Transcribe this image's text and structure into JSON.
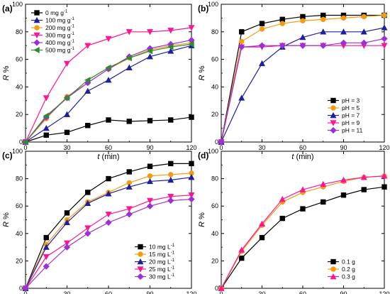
{
  "chart_data": [
    {
      "type": "line",
      "panel_label": "(a)",
      "xlabel": "t",
      "xlabel_unit": "(min)",
      "ylabel": "R",
      "ylabel_unit": "%",
      "xlim": [
        0,
        120
      ],
      "ylim": [
        0,
        100
      ],
      "xticks": [
        0,
        30,
        60,
        90,
        120
      ],
      "yticks": [
        0,
        20,
        40,
        60,
        80,
        100
      ],
      "legend_position": "top-left",
      "x": [
        0,
        15,
        30,
        45,
        60,
        75,
        90,
        105,
        120
      ],
      "series": [
        {
          "name": "0 mg g",
          "name_sup": "-1",
          "color": "#000000",
          "marker": "square",
          "values": [
            0,
            5,
            7,
            12,
            16,
            15,
            15.5,
            16,
            18
          ]
        },
        {
          "name": "100 mg g",
          "name_sup": "-1",
          "color": "#1f1f9c",
          "marker": "triangle-up",
          "values": [
            0,
            10,
            20,
            37,
            45,
            54,
            62,
            66,
            70
          ]
        },
        {
          "name": "200 mg g",
          "name_sup": "-1",
          "color": "#f39c12",
          "marker": "circle",
          "values": [
            0,
            17,
            33,
            43,
            53,
            61,
            67,
            70,
            72
          ]
        },
        {
          "name": "300 mg g",
          "name_sup": "-1",
          "color": "#ff1493",
          "marker": "triangle-down",
          "values": [
            0,
            32,
            57,
            70,
            75,
            80,
            80,
            81,
            83
          ]
        },
        {
          "name": "400 mg g",
          "name_sup": "-1",
          "color": "#9b30d9",
          "marker": "diamond",
          "values": [
            0,
            18,
            32,
            43,
            53,
            62,
            68,
            71,
            74
          ]
        },
        {
          "name": "500 mg g",
          "name_sup": "-1",
          "color": "#2e8b2e",
          "marker": "triangle-left",
          "values": [
            0,
            19,
            32,
            45,
            54,
            61,
            66,
            69,
            71
          ]
        }
      ]
    },
    {
      "type": "line",
      "panel_label": "(b)",
      "xlabel": "t",
      "xlabel_unit": "(min)",
      "ylabel": "R",
      "ylabel_unit": "%",
      "xlim": [
        0,
        120
      ],
      "ylim": [
        0,
        100
      ],
      "xticks": [
        0,
        30,
        60,
        90,
        120
      ],
      "yticks": [
        0,
        20,
        40,
        60,
        80,
        100
      ],
      "legend_position": "bottom-right",
      "x": [
        0,
        15,
        30,
        45,
        60,
        75,
        90,
        105,
        120
      ],
      "series": [
        {
          "name": "pH = 3",
          "name_sup": "",
          "color": "#000000",
          "marker": "square",
          "values": [
            0,
            80,
            86,
            89,
            91,
            92,
            92,
            92,
            92
          ]
        },
        {
          "name": "pH = 5",
          "name_sup": "",
          "color": "#f39c12",
          "marker": "circle",
          "values": [
            0,
            73,
            82,
            86,
            88,
            89,
            90,
            91,
            92
          ]
        },
        {
          "name": "pH = 7",
          "name_sup": "",
          "color": "#1f1f9c",
          "marker": "triangle-up",
          "values": [
            0,
            32,
            57,
            69,
            76,
            80,
            80,
            80,
            83
          ]
        },
        {
          "name": "pH = 9",
          "name_sup": "",
          "color": "#ff1493",
          "marker": "triangle-down",
          "values": [
            0,
            69,
            69,
            70,
            70,
            70,
            70,
            70,
            70
          ]
        },
        {
          "name": "pH = 11",
          "name_sup": "",
          "color": "#9b30d9",
          "marker": "diamond",
          "values": [
            0,
            69,
            70,
            70,
            70,
            70,
            72,
            72,
            75
          ]
        }
      ]
    },
    {
      "type": "line",
      "panel_label": "(c)",
      "xlabel": "t",
      "xlabel_unit": "(min)",
      "ylabel": "R",
      "ylabel_unit": "%",
      "xlim": [
        0,
        120
      ],
      "ylim": [
        0,
        100
      ],
      "xticks": [
        0,
        30,
        60,
        90,
        120
      ],
      "yticks": [
        0,
        20,
        40,
        60,
        80,
        100
      ],
      "legend_position": "bottom-right",
      "x": [
        0,
        15,
        30,
        45,
        60,
        75,
        90,
        105,
        120
      ],
      "series": [
        {
          "name": "10 mg L",
          "name_sup": "-1",
          "color": "#000000",
          "marker": "square",
          "values": [
            0,
            37,
            55,
            70,
            80,
            85,
            89,
            91,
            91
          ]
        },
        {
          "name": "15 mg L",
          "name_sup": "-1",
          "color": "#f39c12",
          "marker": "circle",
          "values": [
            0,
            32,
            50,
            63,
            70,
            77,
            82,
            83,
            84
          ]
        },
        {
          "name": "20 mg L",
          "name_sup": "-1",
          "color": "#1f1f9c",
          "marker": "triangle-up",
          "values": [
            0,
            30,
            48,
            62,
            69,
            74,
            78,
            79,
            81
          ]
        },
        {
          "name": "25 mg L",
          "name_sup": "-1",
          "color": "#ff1493",
          "marker": "triangle-down",
          "values": [
            0,
            23,
            33,
            44,
            54,
            58,
            64,
            67,
            68
          ]
        },
        {
          "name": "30 mg L",
          "name_sup": "-1",
          "color": "#9b30d9",
          "marker": "diamond",
          "values": [
            0,
            16,
            30,
            40,
            48,
            54,
            60,
            64,
            65
          ]
        }
      ]
    },
    {
      "type": "line",
      "panel_label": "(d)",
      "xlabel": "t",
      "xlabel_unit": "(min)",
      "ylabel": "R",
      "ylabel_unit": "%",
      "xlim": [
        0,
        120
      ],
      "ylim": [
        0,
        100
      ],
      "xticks": [
        0,
        30,
        60,
        90,
        120
      ],
      "yticks": [
        0,
        20,
        40,
        60,
        80,
        100
      ],
      "legend_position": "bottom-right",
      "x": [
        0,
        15,
        30,
        45,
        60,
        75,
        90,
        105,
        120
      ],
      "series": [
        {
          "name": "0.1 g",
          "name_sup": "",
          "color": "#000000",
          "marker": "square",
          "values": [
            0,
            22,
            37,
            51,
            58,
            63,
            68,
            72,
            74
          ]
        },
        {
          "name": "0.2 g",
          "name_sup": "",
          "color": "#f39c12",
          "marker": "circle",
          "values": [
            0,
            27,
            46,
            63,
            70,
            74,
            78,
            81,
            82
          ]
        },
        {
          "name": "0.3 g",
          "name_sup": "",
          "color": "#ff1493",
          "marker": "triangle-up",
          "values": [
            0,
            28,
            47,
            65,
            72,
            76,
            79,
            81,
            82
          ]
        }
      ]
    }
  ]
}
